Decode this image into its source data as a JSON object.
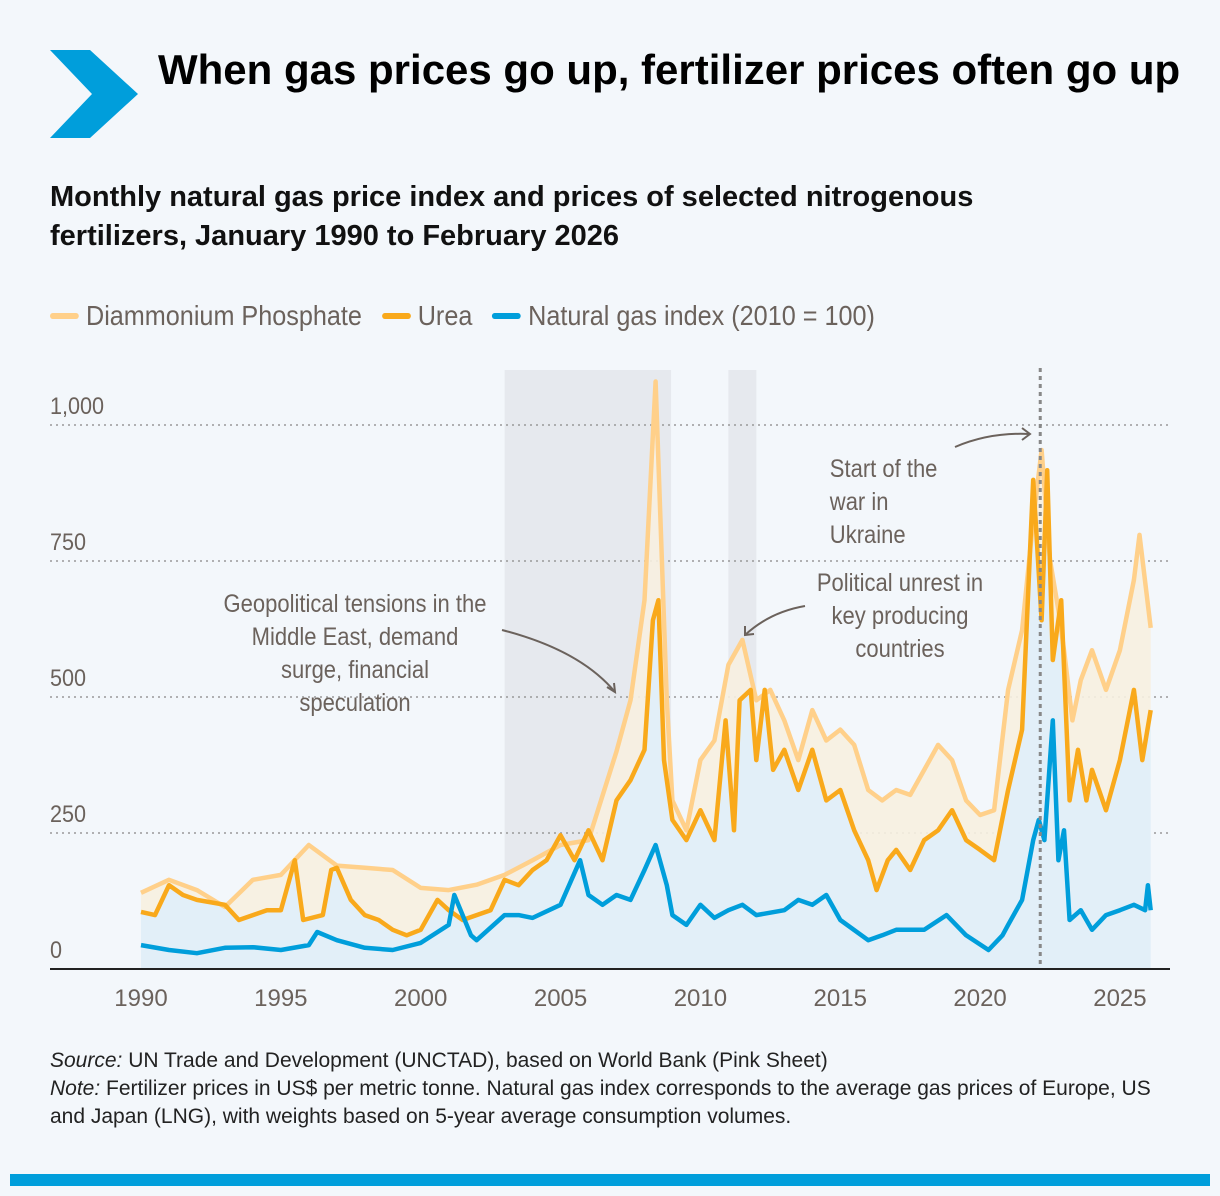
{
  "header": {
    "title": "When gas prices go up, fertilizer prices often go up",
    "subtitle": "Monthly natural gas price index and prices of selected nitrogenous fertilizers, January 1990 to February 2026",
    "icon": "chevron-right-icon",
    "accent": "#009edb"
  },
  "legend": [
    {
      "label": "Diammonium Phosphate",
      "color": "#ffd08a"
    },
    {
      "label": "Urea",
      "color": "#f9a91b"
    },
    {
      "label": "Natural gas index (2010 = 100)",
      "color": "#009edb"
    }
  ],
  "annotations": {
    "geo": "Geopolitical tensions in the Middle East, demand surge, financial speculation",
    "unrest": "Political unrest in key producing countries",
    "war": "Start of the war in Ukraine"
  },
  "footer": {
    "source_label": "Source:",
    "source": " UN Trade and Development (UNCTAD), based on World Bank (Pink Sheet)",
    "note_label": "Note:",
    "note": " Fertilizer prices in US$ per metric tonne. Natural gas index corresponds to the average gas prices of Europe, US and Japan (LNG), with weights based on 5-year average consumption volumes."
  },
  "chart_data": {
    "type": "line",
    "title": "Monthly natural gas price index and prices of selected nitrogenous fertilizers",
    "xlim": [
      1990,
      2026.2
    ],
    "ylim": [
      0,
      1080
    ],
    "yticks": [
      0,
      250,
      500,
      750,
      1000
    ],
    "ytick_labels": [
      "0",
      "250",
      "500",
      "750",
      "1,000"
    ],
    "xticks": [
      1990,
      1995,
      2000,
      2005,
      2010,
      2015,
      2020,
      2025
    ],
    "xtick_labels": [
      "1990",
      "1995",
      "2000",
      "2005",
      "2010",
      "2015",
      "2020",
      "2025"
    ],
    "grid": "horizontal dotted",
    "legend_position": "top-left",
    "shaded_periods": [
      [
        2003,
        2008.95
      ],
      [
        2011,
        2012
      ]
    ],
    "event_line": 2022.15,
    "series": [
      {
        "name": "Diammonium Phosphate",
        "color": "#ffd08a",
        "points": [
          [
            1990,
            140
          ],
          [
            1991,
            164
          ],
          [
            1992,
            145
          ],
          [
            1993,
            114
          ],
          [
            1994,
            164
          ],
          [
            1995,
            173
          ],
          [
            1996,
            228
          ],
          [
            1997,
            190
          ],
          [
            1998,
            186
          ],
          [
            1999,
            182
          ],
          [
            2000,
            149
          ],
          [
            2001,
            145
          ],
          [
            2002,
            155
          ],
          [
            2003,
            173
          ],
          [
            2004,
            200
          ],
          [
            2005,
            228
          ],
          [
            2006,
            237
          ],
          [
            2007,
            400
          ],
          [
            2007.5,
            494
          ],
          [
            2008,
            678
          ],
          [
            2008.4,
            1080
          ],
          [
            2008.8,
            494
          ],
          [
            2009,
            310
          ],
          [
            2009.5,
            255
          ],
          [
            2010,
            384
          ],
          [
            2010.5,
            420
          ],
          [
            2011,
            559
          ],
          [
            2011.5,
            605
          ],
          [
            2012,
            494
          ],
          [
            2012.5,
            513
          ],
          [
            2013,
            457
          ],
          [
            2013.5,
            384
          ],
          [
            2014,
            476
          ],
          [
            2014.5,
            420
          ],
          [
            2015,
            440
          ],
          [
            2015.5,
            412
          ],
          [
            2016,
            329
          ],
          [
            2016.5,
            310
          ],
          [
            2017,
            329
          ],
          [
            2017.5,
            320
          ],
          [
            2018,
            366
          ],
          [
            2018.5,
            412
          ],
          [
            2019,
            384
          ],
          [
            2019.5,
            310
          ],
          [
            2020,
            283
          ],
          [
            2020.5,
            292
          ],
          [
            2021,
            513
          ],
          [
            2021.5,
            623
          ],
          [
            2021.9,
            825
          ],
          [
            2022.2,
            954
          ],
          [
            2022.5,
            752
          ],
          [
            2022.8,
            660
          ],
          [
            2023,
            586
          ],
          [
            2023.3,
            457
          ],
          [
            2023.6,
            531
          ],
          [
            2024,
            586
          ],
          [
            2024.5,
            513
          ],
          [
            2025,
            586
          ],
          [
            2025.5,
            715
          ],
          [
            2025.7,
            798
          ],
          [
            2026.1,
            627
          ]
        ]
      },
      {
        "name": "Urea",
        "color": "#f9a91b",
        "points": [
          [
            1990,
            105
          ],
          [
            1990.5,
            99
          ],
          [
            1991,
            154
          ],
          [
            1991.5,
            136
          ],
          [
            1992,
            127
          ],
          [
            1993,
            118
          ],
          [
            1993.5,
            90
          ],
          [
            1994,
            99
          ],
          [
            1994.5,
            108
          ],
          [
            1995,
            108
          ],
          [
            1995.5,
            200
          ],
          [
            1995.8,
            90
          ],
          [
            1996.5,
            99
          ],
          [
            1996.8,
            182
          ],
          [
            1997,
            186
          ],
          [
            1997.5,
            127
          ],
          [
            1998,
            99
          ],
          [
            1998.5,
            90
          ],
          [
            1999,
            72
          ],
          [
            1999.5,
            62
          ],
          [
            2000,
            72
          ],
          [
            2000.6,
            127
          ],
          [
            2001,
            108
          ],
          [
            2001.5,
            90
          ],
          [
            2002,
            99
          ],
          [
            2002.5,
            108
          ],
          [
            2003,
            164
          ],
          [
            2003.5,
            154
          ],
          [
            2004,
            182
          ],
          [
            2004.5,
            200
          ],
          [
            2005,
            246
          ],
          [
            2005.5,
            200
          ],
          [
            2006,
            255
          ],
          [
            2006.5,
            200
          ],
          [
            2007,
            310
          ],
          [
            2007.5,
            347
          ],
          [
            2008,
            403
          ],
          [
            2008.3,
            641
          ],
          [
            2008.5,
            678
          ],
          [
            2008.7,
            384
          ],
          [
            2009,
            274
          ],
          [
            2009.5,
            237
          ],
          [
            2010,
            292
          ],
          [
            2010.5,
            237
          ],
          [
            2010.9,
            457
          ],
          [
            2011.2,
            255
          ],
          [
            2011.4,
            494
          ],
          [
            2011.8,
            513
          ],
          [
            2012,
            384
          ],
          [
            2012.3,
            513
          ],
          [
            2012.6,
            366
          ],
          [
            2013,
            403
          ],
          [
            2013.5,
            329
          ],
          [
            2014,
            403
          ],
          [
            2014.5,
            310
          ],
          [
            2015,
            329
          ],
          [
            2015.5,
            255
          ],
          [
            2016,
            200
          ],
          [
            2016.3,
            145
          ],
          [
            2016.7,
            200
          ],
          [
            2017,
            219
          ],
          [
            2017.5,
            182
          ],
          [
            2018,
            237
          ],
          [
            2018.5,
            255
          ],
          [
            2019,
            292
          ],
          [
            2019.5,
            237
          ],
          [
            2020,
            219
          ],
          [
            2020.5,
            200
          ],
          [
            2021,
            329
          ],
          [
            2021.5,
            440
          ],
          [
            2021.9,
            899
          ],
          [
            2022.2,
            641
          ],
          [
            2022.4,
            917
          ],
          [
            2022.6,
            568
          ],
          [
            2022.9,
            678
          ],
          [
            2023.2,
            310
          ],
          [
            2023.5,
            403
          ],
          [
            2023.8,
            310
          ],
          [
            2024,
            366
          ],
          [
            2024.5,
            292
          ],
          [
            2025,
            384
          ],
          [
            2025.5,
            513
          ],
          [
            2025.8,
            384
          ],
          [
            2026.1,
            476
          ]
        ]
      },
      {
        "name": "Natural gas index (2010 = 100)",
        "color": "#009edb",
        "points": [
          [
            1990,
            44
          ],
          [
            1991,
            35
          ],
          [
            1992,
            29
          ],
          [
            1993,
            39
          ],
          [
            1994,
            40
          ],
          [
            1995,
            35
          ],
          [
            1996,
            44
          ],
          [
            1996.3,
            68
          ],
          [
            1997,
            53
          ],
          [
            1998,
            39
          ],
          [
            1999,
            35
          ],
          [
            2000,
            48
          ],
          [
            2001,
            81
          ],
          [
            2001.2,
            136
          ],
          [
            2001.8,
            62
          ],
          [
            2002,
            53
          ],
          [
            2003,
            99
          ],
          [
            2003.5,
            99
          ],
          [
            2004,
            94
          ],
          [
            2005,
            118
          ],
          [
            2005.7,
            200
          ],
          [
            2006,
            136
          ],
          [
            2006.5,
            118
          ],
          [
            2007,
            136
          ],
          [
            2007.5,
            127
          ],
          [
            2008,
            182
          ],
          [
            2008.4,
            228
          ],
          [
            2008.8,
            154
          ],
          [
            2009,
            99
          ],
          [
            2009.5,
            81
          ],
          [
            2010,
            118
          ],
          [
            2010.5,
            94
          ],
          [
            2011,
            108
          ],
          [
            2011.5,
            118
          ],
          [
            2012,
            99
          ],
          [
            2013,
            108
          ],
          [
            2013.5,
            127
          ],
          [
            2014,
            118
          ],
          [
            2014.5,
            136
          ],
          [
            2015,
            90
          ],
          [
            2016,
            53
          ],
          [
            2016.5,
            62
          ],
          [
            2017,
            72
          ],
          [
            2018,
            72
          ],
          [
            2018.8,
            99
          ],
          [
            2019.5,
            62
          ],
          [
            2020.3,
            35
          ],
          [
            2020.8,
            62
          ],
          [
            2021,
            81
          ],
          [
            2021.5,
            127
          ],
          [
            2021.9,
            237
          ],
          [
            2022.1,
            274
          ],
          [
            2022.3,
            237
          ],
          [
            2022.6,
            457
          ],
          [
            2022.8,
            200
          ],
          [
            2023,
            255
          ],
          [
            2023.2,
            90
          ],
          [
            2023.6,
            108
          ],
          [
            2024,
            72
          ],
          [
            2024.5,
            99
          ],
          [
            2025,
            108
          ],
          [
            2025.5,
            118
          ],
          [
            2025.9,
            108
          ],
          [
            2026,
            154
          ],
          [
            2026.1,
            108
          ]
        ]
      }
    ]
  }
}
